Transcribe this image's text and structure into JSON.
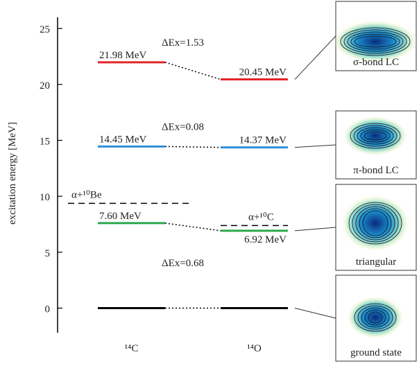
{
  "chart_data": {
    "type": "level",
    "y_label": "excitation energy [MeV]",
    "ylim": [
      -2.2,
      26
    ],
    "yticks": [
      0,
      5,
      10,
      15,
      20,
      25
    ],
    "colors": [
      "#000000",
      "#2aa84a",
      "#2f8fd6",
      "#e3242b"
    ],
    "series": [
      {
        "name": "¹⁴C",
        "values": [
          0,
          7.6,
          14.45,
          21.98
        ],
        "value_labels": [
          null,
          "7.60 MeV",
          "14.45 MeV",
          "21.98 MeV"
        ]
      },
      {
        "name": "¹⁴O",
        "values": [
          0,
          6.92,
          14.37,
          20.45
        ],
        "value_labels": [
          null,
          "6.92 MeV",
          "14.37 MeV",
          "20.45 MeV"
        ]
      }
    ],
    "annotations": [
      "ΔEx=1.53",
      "ΔEx=0.08",
      "ΔEx=0.68"
    ],
    "thresholds": [
      {
        "name": "α+¹⁰Be",
        "value": 9.37
      },
      {
        "name": "α+¹⁰C",
        "value": 7.38
      }
    ],
    "panels": [
      "σ-bond LC",
      "π-bond LC",
      "triangular",
      "ground state"
    ]
  }
}
